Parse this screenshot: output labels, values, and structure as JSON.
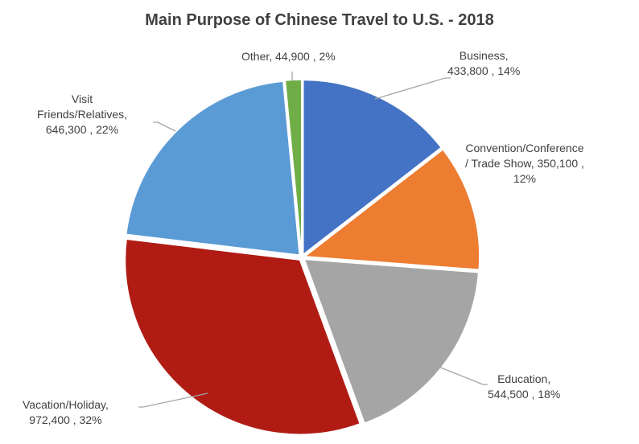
{
  "chart_data": {
    "type": "pie",
    "title": "Main Purpose of Chinese Travel to U.S. - 2018",
    "slices": [
      {
        "name": "Business",
        "value": 433800,
        "percent": "14%",
        "color": "#4472C4",
        "label_line1": "Business,",
        "label_line2": "433,800 , 14%"
      },
      {
        "name": "Convention/Conference / Trade Show",
        "value": 350100,
        "percent": "12%",
        "color": "#ED7D31",
        "label_line1": "Convention/Conference",
        "label_line2": "/ Trade Show, 350,100 ,",
        "label_line3": "12%"
      },
      {
        "name": "Education",
        "value": 544500,
        "percent": "18%",
        "color": "#A5A5A5",
        "label_line1": "Education,",
        "label_line2": "544,500 , 18%"
      },
      {
        "name": "Vacation/Holiday",
        "value": 972400,
        "percent": "32%",
        "color": "#B01C14",
        "label_line1": "Vacation/Holiday,",
        "label_line2": "972,400 , 32%"
      },
      {
        "name": "Visit Friends/Relatives",
        "value": 646300,
        "percent": "22%",
        "color": "#5B9BD5",
        "label_line1": "Visit",
        "label_line2": "Friends/Relatives,",
        "label_line3": "646,300 , 22%"
      },
      {
        "name": "Other",
        "value": 44900,
        "percent": "2%",
        "color": "#70AD47",
        "label_line1": "Other, 44,900 , 2%"
      }
    ],
    "start_angle": "12 o'clock",
    "direction": "clockwise",
    "legend": "none"
  }
}
